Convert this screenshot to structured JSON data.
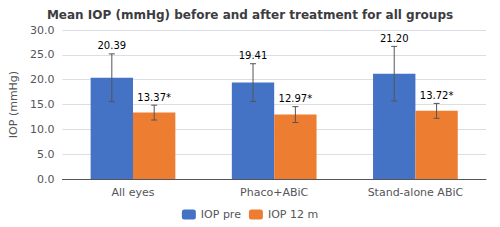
{
  "chart_data": {
    "type": "bar",
    "title": "Mean IOP (mmHg) before and after treatment for all groups",
    "ylabel": "IOP (mmHg)",
    "categories": [
      "All eyes",
      "Phaco+ABiC",
      "Stand-alone ABiC"
    ],
    "series": [
      {
        "name": "IOP pre",
        "color": "#4472C4",
        "values": [
          20.39,
          19.41,
          21.2
        ],
        "errors": [
          4.8,
          3.8,
          5.5
        ],
        "value_labels": [
          "20.39",
          "19.41",
          "21.20"
        ]
      },
      {
        "name": "IOP 12 m",
        "color": "#ED7D31",
        "values": [
          13.37,
          12.97,
          13.72
        ],
        "errors": [
          1.5,
          1.6,
          1.5
        ],
        "value_labels": [
          "13.37*",
          "12.97*",
          "13.72*"
        ]
      }
    ],
    "ylim": [
      0,
      30
    ],
    "yticks": [
      {
        "value": 0,
        "label": "0.0"
      },
      {
        "value": 5,
        "label": "5.0"
      },
      {
        "value": 10,
        "label": "10.0"
      },
      {
        "value": 15,
        "label": "15.0"
      },
      {
        "value": 20,
        "label": "20.0"
      },
      {
        "value": 25,
        "label": "25.0"
      },
      {
        "value": 30,
        "label": "30.0"
      }
    ],
    "grid": true,
    "legend": "bottom",
    "data_labels": true
  }
}
